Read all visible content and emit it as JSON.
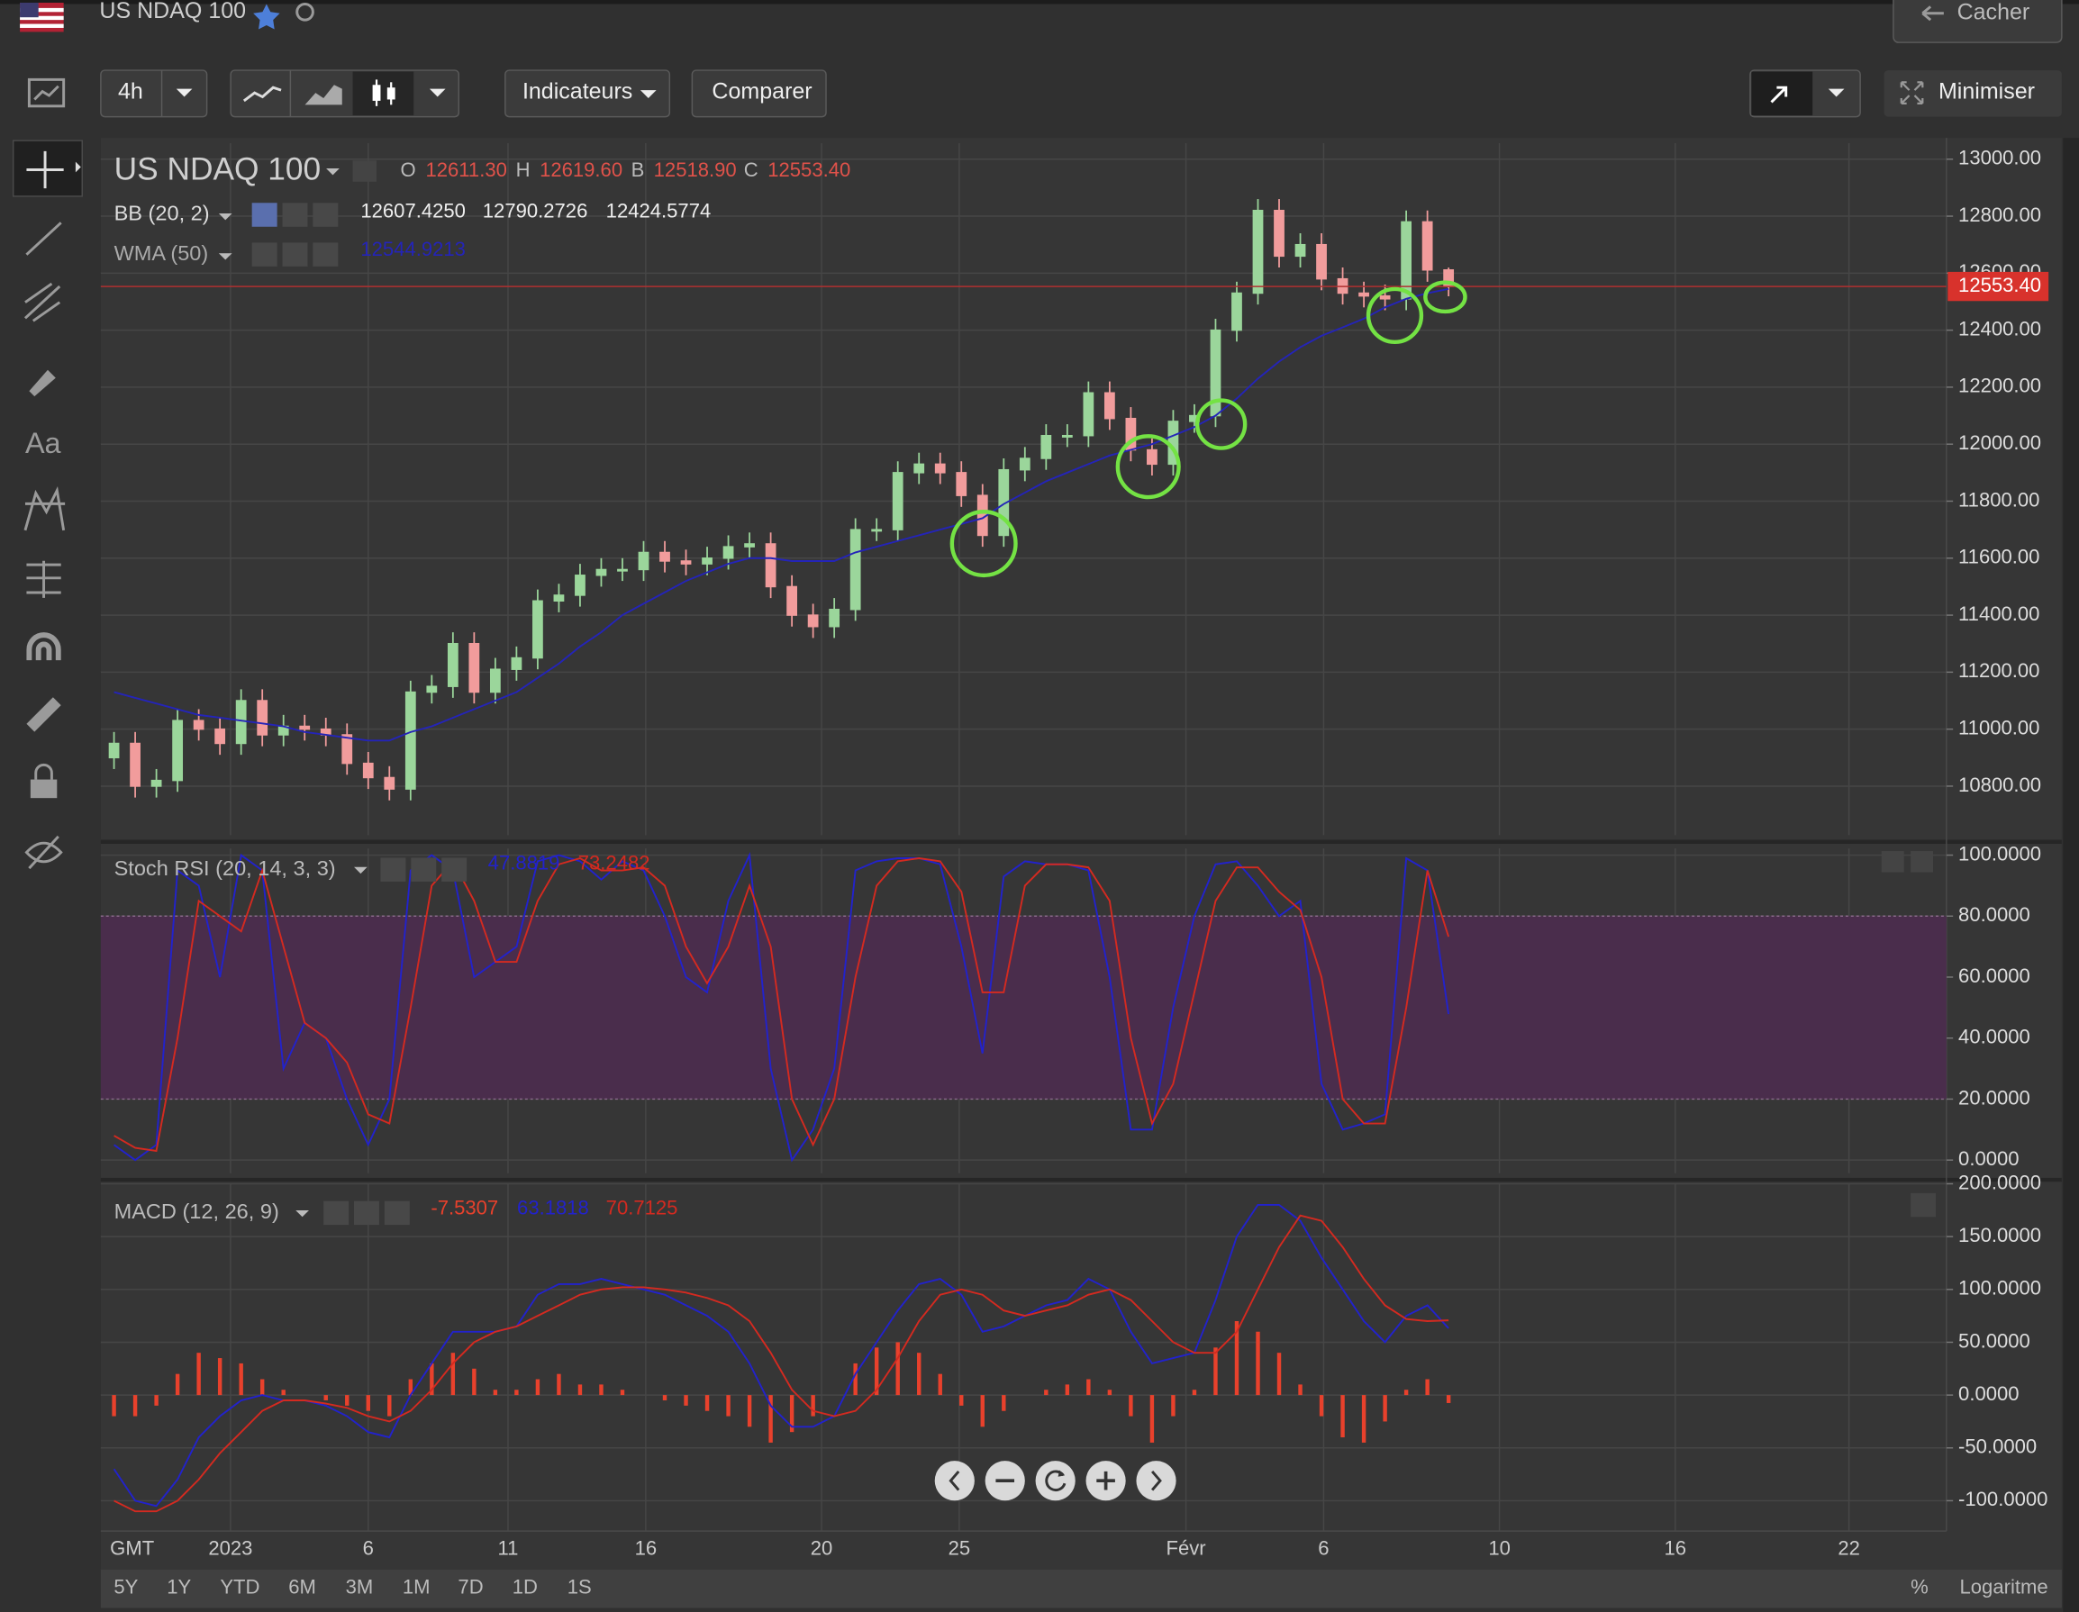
{
  "header": {
    "symbol": "US NDAQ 100",
    "hide": "Cacher"
  },
  "toolbar": {
    "interval": "4h",
    "indicators": "Indicateurs",
    "compare": "Comparer",
    "minimize": "Minimiser"
  },
  "sidebar": {
    "text_tool": "Aa"
  },
  "time_axis_label": "GMT",
  "ranges": [
    "5Y",
    "1Y",
    "YTD",
    "6M",
    "3M",
    "1M",
    "7D",
    "1D",
    "1S"
  ],
  "scale_options": {
    "percent": "%",
    "log": "Logaritme"
  },
  "chart_data": [
    {
      "type": "candlestick",
      "title": "US NDAQ 100",
      "ohlc_labels": [
        "O",
        "H",
        "B",
        "C"
      ],
      "ohlc_values": [
        "12611.30",
        "12619.60",
        "12518.90",
        "12553.40"
      ],
      "up_color": "#9bd69b",
      "down_color": "#f19c9c",
      "candles": [
        [
          10900,
          10990,
          10860,
          10950
        ],
        [
          10950,
          10990,
          10760,
          10800
        ],
        [
          10800,
          10860,
          10760,
          10820
        ],
        [
          10820,
          11070,
          10780,
          11030
        ],
        [
          11030,
          11070,
          10960,
          11000
        ],
        [
          11000,
          11040,
          10910,
          10950
        ],
        [
          10950,
          11140,
          10910,
          11100
        ],
        [
          11100,
          11140,
          10940,
          10980
        ],
        [
          10980,
          11050,
          10940,
          11010
        ],
        [
          11010,
          11050,
          10960,
          11000
        ],
        [
          11000,
          11040,
          10940,
          10980
        ],
        [
          10980,
          11020,
          10840,
          10880
        ],
        [
          10880,
          10920,
          10790,
          10830
        ],
        [
          10830,
          10870,
          10750,
          10790
        ],
        [
          10790,
          11170,
          10750,
          11130
        ],
        [
          11130,
          11190,
          11090,
          11150
        ],
        [
          11150,
          11340,
          11110,
          11300
        ],
        [
          11300,
          11340,
          11090,
          11130
        ],
        [
          11130,
          11250,
          11090,
          11210
        ],
        [
          11210,
          11290,
          11170,
          11250
        ],
        [
          11250,
          11490,
          11210,
          11450
        ],
        [
          11450,
          11510,
          11410,
          11470
        ],
        [
          11470,
          11580,
          11430,
          11540
        ],
        [
          11540,
          11600,
          11500,
          11560
        ],
        [
          11560,
          11600,
          11520,
          11560
        ],
        [
          11560,
          11660,
          11520,
          11620
        ],
        [
          11620,
          11660,
          11550,
          11590
        ],
        [
          11590,
          11630,
          11540,
          11580
        ],
        [
          11580,
          11640,
          11540,
          11600
        ],
        [
          11600,
          11680,
          11560,
          11640
        ],
        [
          11640,
          11690,
          11600,
          11650
        ],
        [
          11650,
          11690,
          11460,
          11500
        ],
        [
          11500,
          11540,
          11360,
          11400
        ],
        [
          11400,
          11440,
          11320,
          11360
        ],
        [
          11360,
          11460,
          11320,
          11420
        ],
        [
          11420,
          11740,
          11380,
          11700
        ],
        [
          11700,
          11740,
          11660,
          11700
        ],
        [
          11700,
          11940,
          11660,
          11900
        ],
        [
          11900,
          11970,
          11860,
          11930
        ],
        [
          11930,
          11970,
          11860,
          11900
        ],
        [
          11900,
          11940,
          11780,
          11820
        ],
        [
          11820,
          11860,
          11640,
          11680
        ],
        [
          11680,
          11950,
          11640,
          11910
        ],
        [
          11910,
          11990,
          11870,
          11950
        ],
        [
          11950,
          12070,
          11910,
          12030
        ],
        [
          12030,
          12070,
          11990,
          12030
        ],
        [
          12030,
          12220,
          11990,
          12180
        ],
        [
          12180,
          12220,
          12050,
          12090
        ],
        [
          12090,
          12130,
          11940,
          11980
        ],
        [
          11980,
          12020,
          11890,
          11930
        ],
        [
          11930,
          12120,
          11890,
          12080
        ],
        [
          12080,
          12140,
          12040,
          12100
        ],
        [
          12100,
          12440,
          12060,
          12400
        ],
        [
          12400,
          12570,
          12360,
          12530
        ],
        [
          12530,
          12860,
          12490,
          12820
        ],
        [
          12820,
          12860,
          12620,
          12660
        ],
        [
          12660,
          12740,
          12620,
          12700
        ],
        [
          12700,
          12740,
          12540,
          12580
        ],
        [
          12580,
          12620,
          12490,
          12530
        ],
        [
          12530,
          12570,
          12480,
          12520
        ],
        [
          12520,
          12560,
          12470,
          12510
        ],
        [
          12510,
          12820,
          12470,
          12780
        ],
        [
          12780,
          12820,
          12570,
          12611.3
        ],
        [
          12611.3,
          12619.6,
          12518.9,
          12553.4
        ]
      ],
      "indicator": {
        "name": "BB (20, 2)",
        "legend_values": [
          "12607.4250",
          "12790.2726",
          "12424.5774"
        ]
      },
      "series": [
        {
          "name": "WMA (50)",
          "color": "#2424b8",
          "legend_value": "12544.9213",
          "values": [
            11130,
            11110,
            11090,
            11070,
            11050,
            11040,
            11030,
            11020,
            11010,
            10990,
            10980,
            10970,
            10960,
            10960,
            10990,
            11010,
            11040,
            11070,
            11100,
            11130,
            11180,
            11230,
            11290,
            11340,
            11400,
            11440,
            11480,
            11520,
            11550,
            11580,
            11600,
            11600,
            11590,
            11590,
            11590,
            11620,
            11640,
            11660,
            11680,
            11700,
            11720,
            11740,
            11790,
            11830,
            11870,
            11900,
            11930,
            11960,
            11980,
            12000,
            12030,
            12060,
            12100,
            12160,
            12230,
            12290,
            12340,
            12380,
            12410,
            12440,
            12480,
            12510,
            12530,
            12544.9213
          ]
        }
      ],
      "xlim": [
        0,
        87
      ],
      "xticks": [
        {
          "value": 6,
          "label": "2023"
        },
        {
          "value": 12.5,
          "label": "6"
        },
        {
          "value": 19.1,
          "label": "11"
        },
        {
          "value": 25.6,
          "label": "16"
        },
        {
          "value": 33.9,
          "label": "20"
        },
        {
          "value": 40.4,
          "label": "25"
        },
        {
          "value": 51.1,
          "label": "Févr"
        },
        {
          "value": 57.6,
          "label": "6"
        },
        {
          "value": 65.9,
          "label": "10"
        },
        {
          "value": 74.2,
          "label": "16"
        },
        {
          "value": 82.4,
          "label": "22"
        }
      ],
      "ylim": [
        10628,
        13056
      ],
      "yticks": [
        {
          "value": 13000,
          "label": "13000.00"
        },
        {
          "value": 12800,
          "label": "12800.00"
        },
        {
          "value": 12600,
          "label": "12600.00"
        },
        {
          "value": 12400,
          "label": "12400.00"
        },
        {
          "value": 12200,
          "label": "12200.00"
        },
        {
          "value": 12000,
          "label": "12000.00"
        },
        {
          "value": 11800,
          "label": "11800.00"
        },
        {
          "value": 11600,
          "label": "11600.00"
        },
        {
          "value": 11400,
          "label": "11400.00"
        },
        {
          "value": 11200,
          "label": "11200.00"
        },
        {
          "value": 11000,
          "label": "11000.00"
        },
        {
          "value": 10800,
          "label": "10800.00"
        }
      ],
      "grid": true
    },
    {
      "type": "line",
      "title": "Stoch RSI (20, 14, 3, 3)",
      "band": [
        20,
        80
      ],
      "band_color": "#4a2d4c",
      "series": [
        {
          "color": "#2222cc",
          "legend_value": "47.8819",
          "values": [
            5,
            0,
            5,
            95,
            90,
            60,
            100,
            95,
            30,
            45,
            40,
            20,
            5,
            20,
            95,
            100,
            95,
            60,
            65,
            70,
            98,
            100,
            98,
            92,
            98,
            95,
            80,
            60,
            55,
            85,
            100,
            30,
            0,
            10,
            30,
            95,
            98,
            99,
            99,
            97,
            70,
            35,
            93,
            98,
            97,
            97,
            95,
            60,
            10,
            10,
            50,
            80,
            97,
            98,
            90,
            80,
            85,
            25,
            10,
            12,
            15,
            99,
            95,
            47.8819
          ]
        },
        {
          "color": "#d42a20",
          "legend_value": "73.2482",
          "values": [
            8,
            4,
            3,
            40,
            85,
            80,
            75,
            95,
            70,
            45,
            40,
            32,
            15,
            12,
            50,
            90,
            98,
            85,
            65,
            65,
            85,
            97,
            99,
            95,
            95,
            96,
            90,
            70,
            58,
            70,
            90,
            70,
            20,
            5,
            20,
            60,
            90,
            98,
            99,
            98,
            88,
            55,
            55,
            90,
            97,
            97,
            96,
            85,
            40,
            12,
            25,
            55,
            85,
            96,
            96,
            88,
            82,
            60,
            20,
            12,
            12,
            50,
            95,
            73.2482
          ]
        }
      ],
      "ylim": [
        -4.3,
        102.2
      ],
      "yticks": [
        {
          "value": 100,
          "label": "100.0000"
        },
        {
          "value": 80,
          "label": "80.0000"
        },
        {
          "value": 60,
          "label": "60.0000"
        },
        {
          "value": 40,
          "label": "40.0000"
        },
        {
          "value": 20,
          "label": "20.0000"
        },
        {
          "value": 0,
          "label": "0.0000"
        }
      ],
      "grid": true
    },
    {
      "type": "combo",
      "title": "MACD (12, 26, 9)",
      "series": [
        {
          "type": "bar",
          "color": "#e8412c",
          "legend_value": "-7.5307",
          "values": [
            -20,
            -20,
            -10,
            20,
            40,
            35,
            30,
            15,
            5,
            0,
            -5,
            -10,
            -15,
            -20,
            15,
            30,
            40,
            25,
            5,
            5,
            15,
            20,
            10,
            10,
            5,
            0,
            -5,
            -10,
            -15,
            -20,
            -30,
            -45,
            -35,
            -20,
            0,
            30,
            45,
            50,
            40,
            20,
            -10,
            -30,
            -15,
            0,
            5,
            10,
            15,
            5,
            -20,
            -45,
            -20,
            5,
            45,
            70,
            60,
            40,
            10,
            -20,
            -40,
            -45,
            -25,
            5,
            15,
            -7.5307
          ]
        },
        {
          "type": "line",
          "color": "#2222cc",
          "legend_value": "63.1818",
          "values": [
            -70,
            -100,
            -105,
            -80,
            -40,
            -20,
            -5,
            0,
            -5,
            -5,
            -10,
            -20,
            -35,
            -40,
            0,
            30,
            60,
            60,
            60,
            65,
            95,
            105,
            105,
            110,
            105,
            100,
            95,
            85,
            75,
            60,
            30,
            -10,
            -30,
            -30,
            -20,
            20,
            50,
            80,
            105,
            110,
            95,
            60,
            65,
            75,
            85,
            90,
            110,
            100,
            60,
            30,
            35,
            40,
            90,
            150,
            180,
            180,
            165,
            130,
            100,
            70,
            50,
            75,
            85,
            63.1818
          ]
        },
        {
          "type": "line",
          "color": "#d42a20",
          "legend_value": "70.7125",
          "values": [
            -100,
            -110,
            -110,
            -100,
            -80,
            -55,
            -35,
            -15,
            -5,
            -5,
            -8,
            -12,
            -20,
            -25,
            -15,
            5,
            30,
            50,
            60,
            65,
            75,
            85,
            95,
            100,
            102,
            102,
            100,
            97,
            92,
            85,
            70,
            40,
            5,
            -15,
            -20,
            -15,
            5,
            35,
            70,
            95,
            100,
            95,
            80,
            75,
            80,
            85,
            95,
            100,
            90,
            70,
            50,
            40,
            40,
            60,
            100,
            140,
            170,
            165,
            140,
            110,
            85,
            72,
            70,
            70.7125
          ]
        }
      ],
      "ylim": [
        -128.75,
        200
      ],
      "yticks": [
        {
          "value": 200,
          "label": "200.0000"
        },
        {
          "value": 150,
          "label": "150.0000"
        },
        {
          "value": 100,
          "label": "100.0000"
        },
        {
          "value": 50,
          "label": "50.0000"
        },
        {
          "value": 0,
          "label": "0.0000"
        },
        {
          "value": -50,
          "label": "-50.0000"
        },
        {
          "value": -100,
          "label": "-100.0000"
        }
      ],
      "grid": true
    }
  ]
}
